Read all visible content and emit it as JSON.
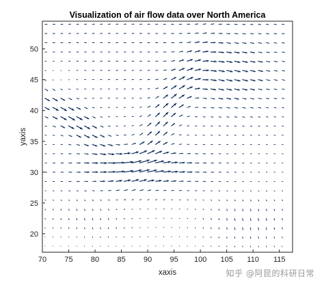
{
  "chart_data": {
    "type": "quiver",
    "title": "Visualization of air flow data over North America",
    "xlabel": "xaxis",
    "ylabel": "yaxis",
    "xlim": [
      70,
      117.5
    ],
    "ylim": [
      17,
      54.5
    ],
    "xticks": [
      70,
      75,
      80,
      85,
      90,
      95,
      100,
      105,
      110,
      115
    ],
    "yticks": [
      20,
      25,
      30,
      35,
      40,
      45,
      50
    ],
    "grid_x": {
      "start": 70.5,
      "step": 1.5,
      "count": 31
    },
    "grid_y": {
      "start": 18,
      "step": 1.5,
      "count": 25
    },
    "arrow_color": "#0b2a5a",
    "box": true,
    "grid": false,
    "legend": "none"
  },
  "watermark": "知乎 @阿昆的科研日常"
}
